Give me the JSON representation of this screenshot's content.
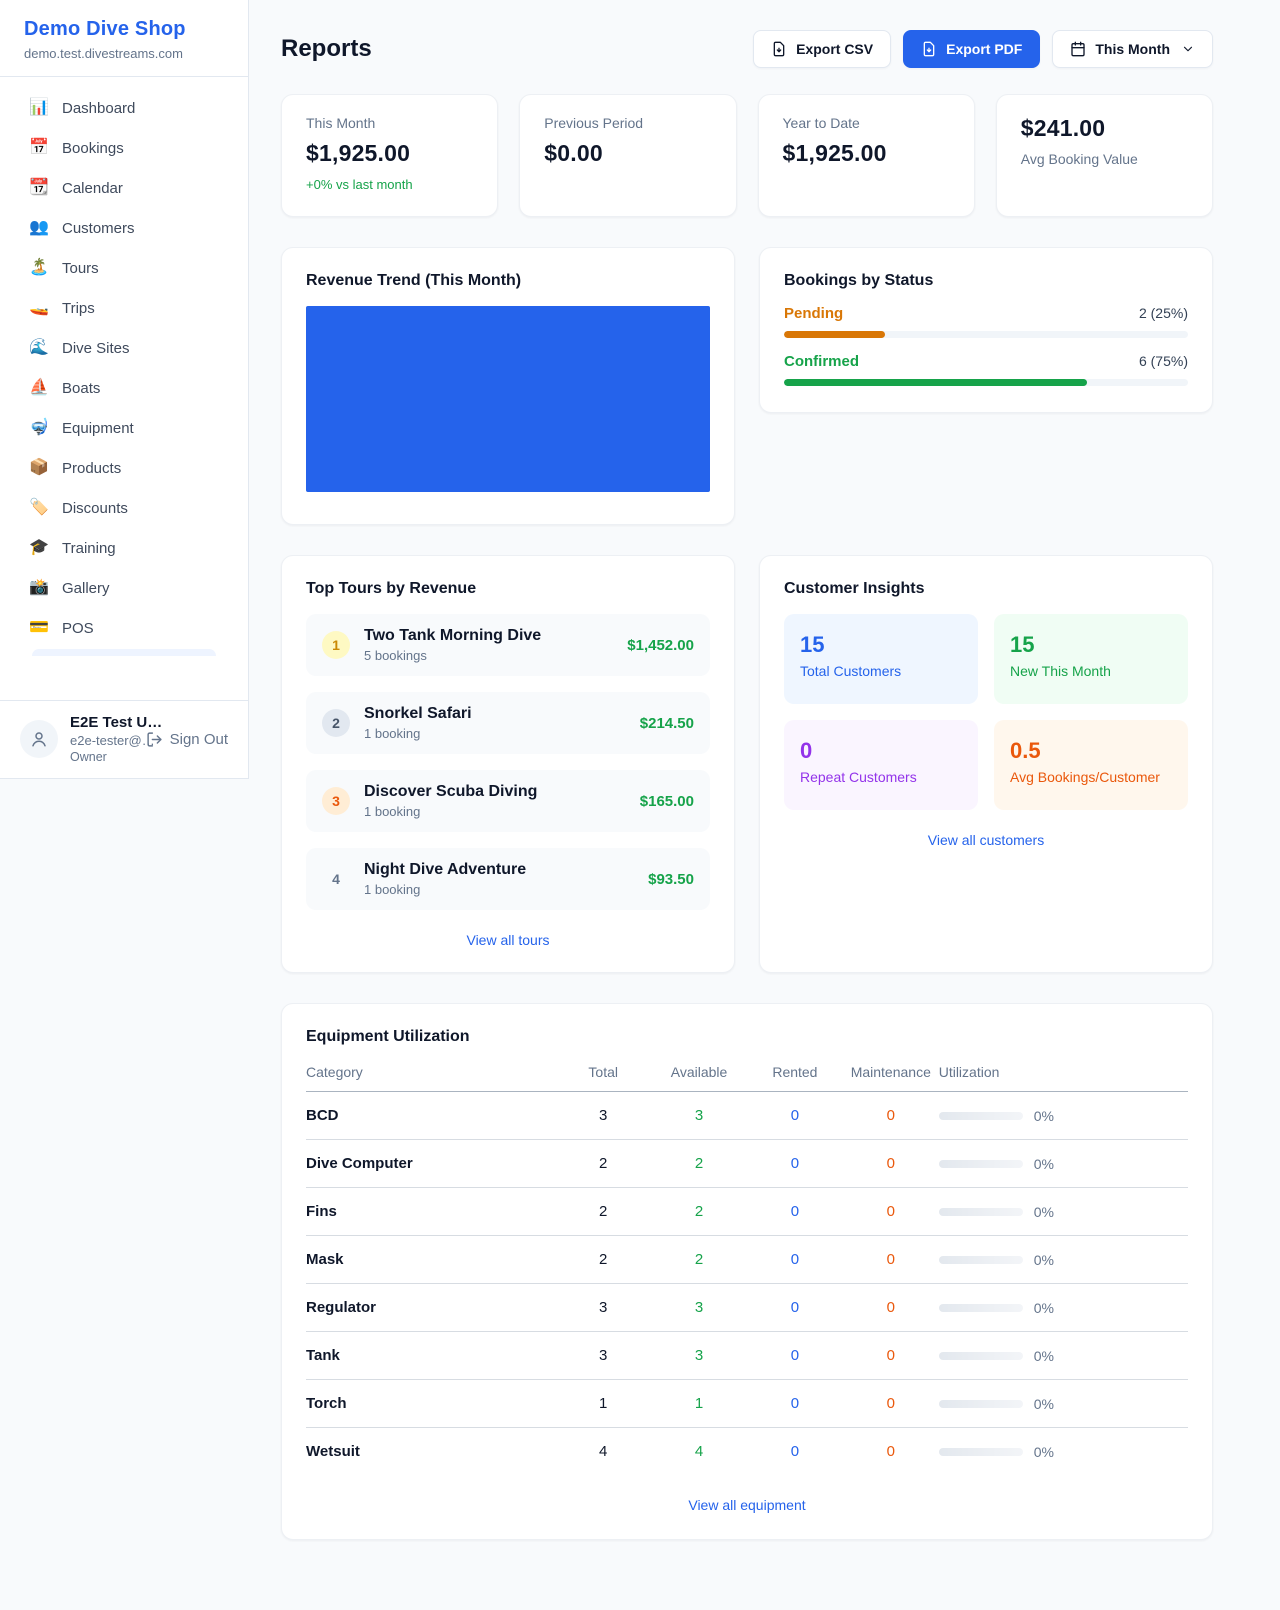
{
  "sidebar": {
    "brand": {
      "name": "Demo Dive Shop",
      "domain": "demo.test.divestreams.com"
    },
    "nav": [
      {
        "label": "Dashboard",
        "icon": "📊"
      },
      {
        "label": "Bookings",
        "icon": "📅"
      },
      {
        "label": "Calendar",
        "icon": "📆"
      },
      {
        "label": "Customers",
        "icon": "👥"
      },
      {
        "label": "Tours",
        "icon": "🏝️"
      },
      {
        "label": "Trips",
        "icon": "🚤"
      },
      {
        "label": "Dive Sites",
        "icon": "🌊"
      },
      {
        "label": "Boats",
        "icon": "⛵"
      },
      {
        "label": "Equipment",
        "icon": "🤿"
      },
      {
        "label": "Products",
        "icon": "📦"
      },
      {
        "label": "Discounts",
        "icon": "🏷️"
      },
      {
        "label": "Training",
        "icon": "🎓"
      },
      {
        "label": "Gallery",
        "icon": "📸"
      },
      {
        "label": "POS",
        "icon": "💳"
      }
    ],
    "user": {
      "name": "E2E Test U…",
      "email": "e2e-tester@…",
      "role": "Owner",
      "sign_out_label": "Sign Out"
    }
  },
  "header": {
    "title": "Reports",
    "export_csv_label": "Export CSV",
    "export_pdf_label": "Export PDF",
    "period_label": "This Month"
  },
  "stats": {
    "cards": [
      {
        "label": "This Month",
        "value": "$1,925.00",
        "delta": "+0% vs last month"
      },
      {
        "label": "Previous Period",
        "value": "$0.00"
      },
      {
        "label": "Year to Date",
        "value": "$1,925.00"
      },
      {
        "label": "Avg Booking Value",
        "value": "$241.00"
      }
    ]
  },
  "revenue_trend": {
    "title": "Revenue Trend (This Month)"
  },
  "chart_data": {
    "type": "bar",
    "title": "Revenue Trend (This Month)",
    "categories": [
      "This Month"
    ],
    "values": [
      1925
    ],
    "bar_color": "#2563eb",
    "note": "rendered as a single solid blue bar filling the entire plot area; no axes, ticks or labels visible"
  },
  "bookings_by_status": {
    "title": "Bookings by Status",
    "statuses": [
      {
        "label": "Pending",
        "count": "2 (25%)",
        "percent": 25,
        "color": "#d97706"
      },
      {
        "label": "Confirmed",
        "count": "6 (75%)",
        "percent": 75,
        "color": "#16a34a"
      }
    ]
  },
  "top_tours": {
    "title": "Top Tours by Revenue",
    "view_all": "View all tours",
    "tours": [
      {
        "rank": "1",
        "name": "Two Tank Morning Dive",
        "bookings": "5 bookings",
        "revenue": "$1,452.00"
      },
      {
        "rank": "2",
        "name": "Snorkel Safari",
        "bookings": "1 booking",
        "revenue": "$214.50"
      },
      {
        "rank": "3",
        "name": "Discover Scuba Diving",
        "bookings": "1 booking",
        "revenue": "$165.00"
      },
      {
        "rank": "4",
        "name": "Night Dive Adventure",
        "bookings": "1 booking",
        "revenue": "$93.50"
      }
    ]
  },
  "customer_insights": {
    "title": "Customer Insights",
    "view_all": "View all customers",
    "tiles": [
      {
        "value": "15",
        "label": "Total Customers",
        "color": "#2563eb",
        "bg": "#eff6ff"
      },
      {
        "value": "15",
        "label": "New This Month",
        "color": "#16a34a",
        "bg": "#f0fdf4"
      },
      {
        "value": "0",
        "label": "Repeat Customers",
        "color": "#9333ea",
        "bg": "#faf5ff"
      },
      {
        "value": "0.5",
        "label": "Avg Bookings/Customer",
        "color": "#ea580c",
        "bg": "#fff7ed"
      }
    ]
  },
  "equipment_utilization": {
    "title": "Equipment Utilization",
    "view_all": "View all equipment",
    "columns": [
      "Category",
      "Total",
      "Available",
      "Rented",
      "Maintenance",
      "Utilization"
    ],
    "rows": [
      {
        "category": "BCD",
        "total": "3",
        "available": "3",
        "rented": "0",
        "maintenance": "0",
        "utilization": "0%"
      },
      {
        "category": "Dive Computer",
        "total": "2",
        "available": "2",
        "rented": "0",
        "maintenance": "0",
        "utilization": "0%"
      },
      {
        "category": "Fins",
        "total": "2",
        "available": "2",
        "rented": "0",
        "maintenance": "0",
        "utilization": "0%"
      },
      {
        "category": "Mask",
        "total": "2",
        "available": "2",
        "rented": "0",
        "maintenance": "0",
        "utilization": "0%"
      },
      {
        "category": "Regulator",
        "total": "3",
        "available": "3",
        "rented": "0",
        "maintenance": "0",
        "utilization": "0%"
      },
      {
        "category": "Tank",
        "total": "3",
        "available": "3",
        "rented": "0",
        "maintenance": "0",
        "utilization": "0%"
      },
      {
        "category": "Torch",
        "total": "1",
        "available": "1",
        "rented": "0",
        "maintenance": "0",
        "utilization": "0%"
      },
      {
        "category": "Wetsuit",
        "total": "4",
        "available": "4",
        "rented": "0",
        "maintenance": "0",
        "utilization": "0%"
      }
    ]
  },
  "colors": {
    "accent": "#2563eb",
    "green": "#16a34a",
    "amber": "#d97706",
    "orange": "#ea580c",
    "purple": "#9333ea",
    "page_bg": "#f8fafc"
  }
}
